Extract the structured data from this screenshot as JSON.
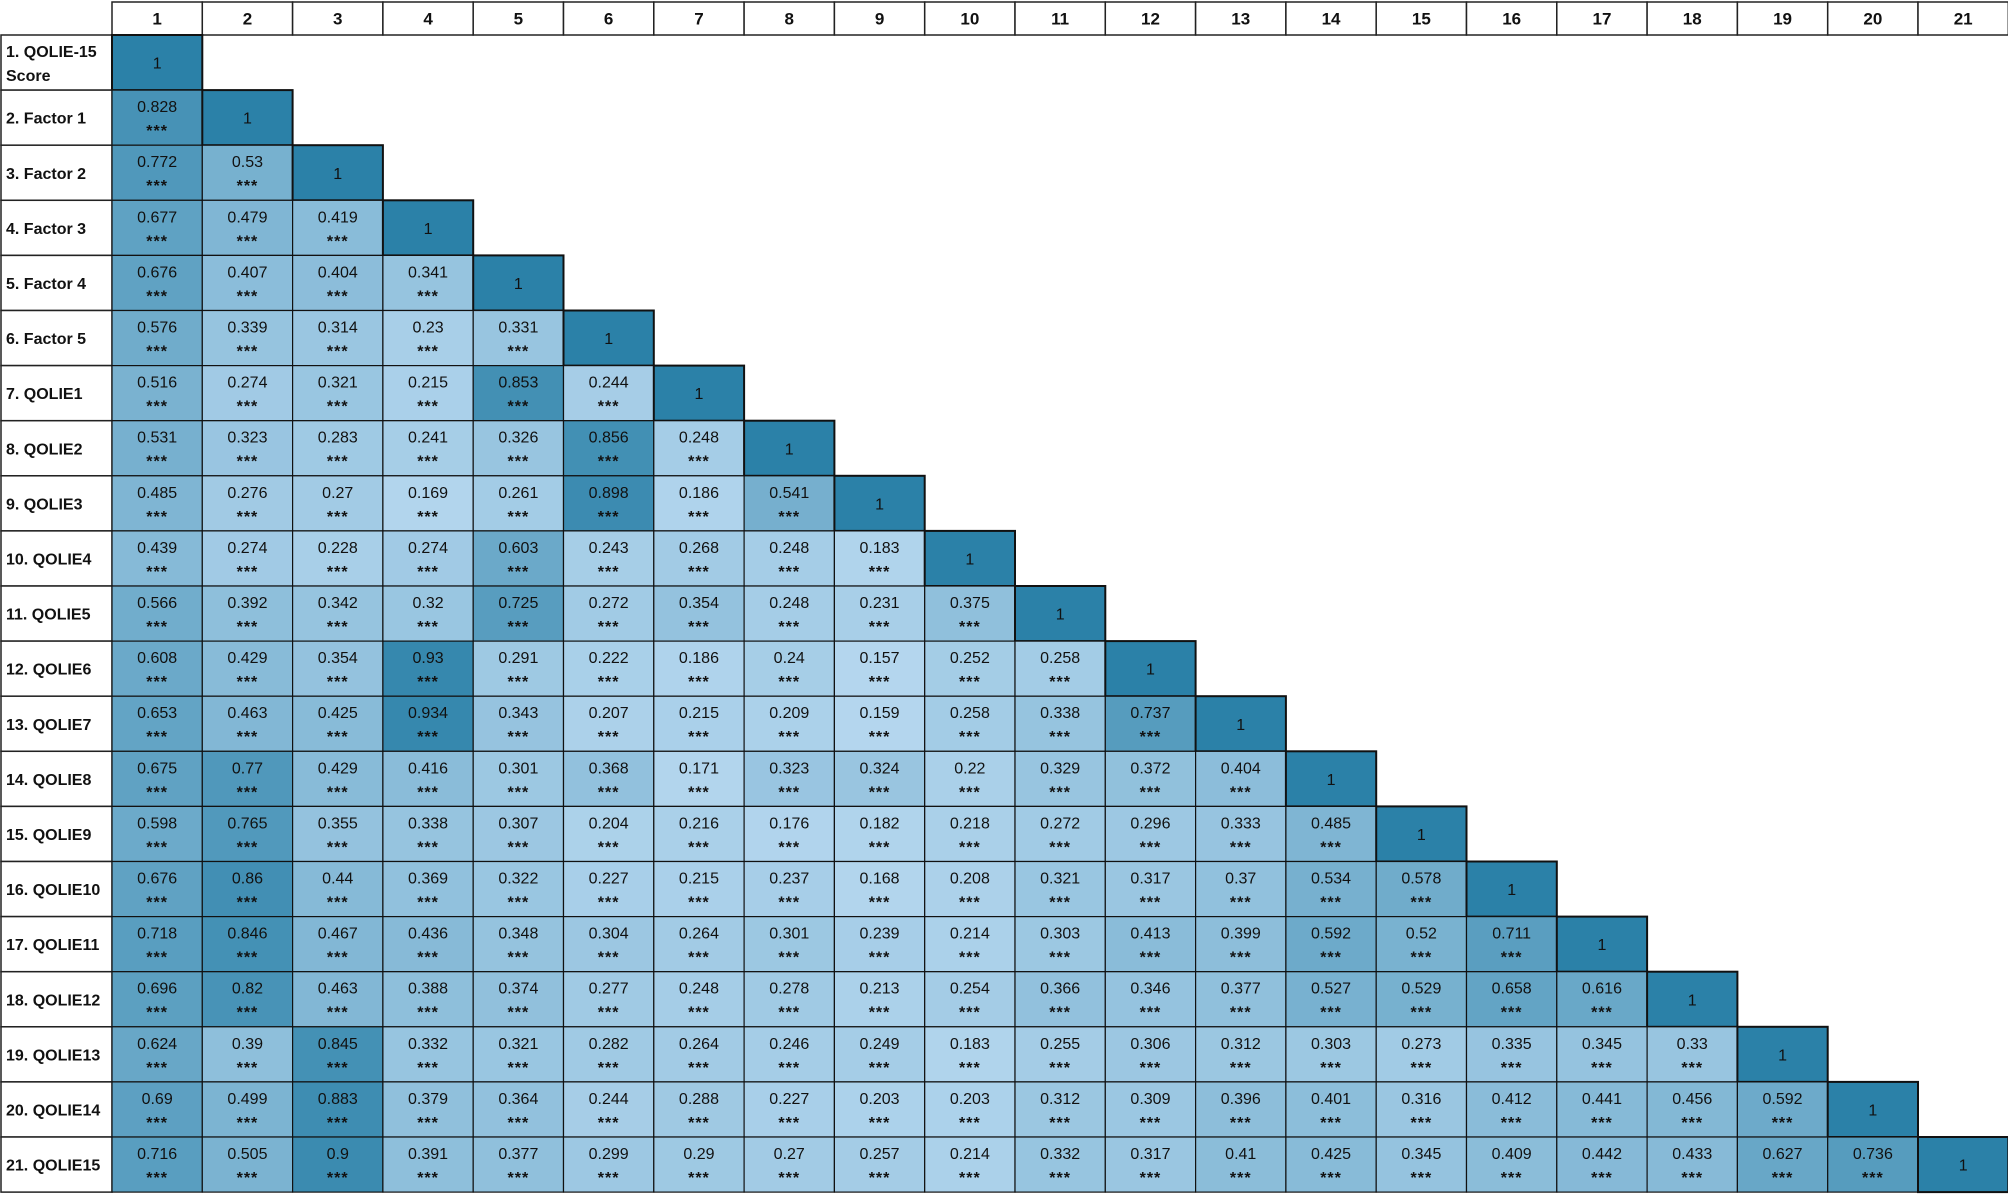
{
  "chart_data": {
    "type": "heatmap",
    "title": "",
    "column_headers": [
      "1",
      "2",
      "3",
      "4",
      "5",
      "6",
      "7",
      "8",
      "9",
      "10",
      "11",
      "12",
      "13",
      "14",
      "15",
      "16",
      "17",
      "18",
      "19",
      "20",
      "21"
    ],
    "row_labels": [
      "1. QOLIE-15 Score",
      "2. Factor 1",
      "3. Factor 2",
      "4. Factor 3",
      "5. Factor 4",
      "6. Factor 5",
      "7. QOLIE1",
      "8. QOLIE2",
      "9. QOLIE3",
      "10. QOLIE4",
      "11. QOLIE5",
      "12. QOLIE6",
      "13. QOLIE7",
      "14. QOLIE8",
      "15. QOLIE9",
      "16. QOLIE10",
      "17. QOLIE11",
      "18. QOLIE12",
      "19. QOLIE13",
      "20. QOLIE14",
      "21. QOLIE15"
    ],
    "significance_marker": "***",
    "color_scale": {
      "low": "#b5d7ef",
      "high": "#2b81a8"
    },
    "values": [
      [
        "1"
      ],
      [
        "0.828",
        "1"
      ],
      [
        "0.772",
        "0.53",
        "1"
      ],
      [
        "0.677",
        "0.479",
        "0.419",
        "1"
      ],
      [
        "0.676",
        "0.407",
        "0.404",
        "0.341",
        "1"
      ],
      [
        "0.576",
        "0.339",
        "0.314",
        "0.23",
        "0.331",
        "1"
      ],
      [
        "0.516",
        "0.274",
        "0.321",
        "0.215",
        "0.853",
        "0.244",
        "1"
      ],
      [
        "0.531",
        "0.323",
        "0.283",
        "0.241",
        "0.326",
        "0.856",
        "0.248",
        "1"
      ],
      [
        "0.485",
        "0.276",
        "0.27",
        "0.169",
        "0.261",
        "0.898",
        "0.186",
        "0.541",
        "1"
      ],
      [
        "0.439",
        "0.274",
        "0.228",
        "0.274",
        "0.603",
        "0.243",
        "0.268",
        "0.248",
        "0.183",
        "1"
      ],
      [
        "0.566",
        "0.392",
        "0.342",
        "0.32",
        "0.725",
        "0.272",
        "0.354",
        "0.248",
        "0.231",
        "0.375",
        "1"
      ],
      [
        "0.608",
        "0.429",
        "0.354",
        "0.93",
        "0.291",
        "0.222",
        "0.186",
        "0.24",
        "0.157",
        "0.252",
        "0.258",
        "1"
      ],
      [
        "0.653",
        "0.463",
        "0.425",
        "0.934",
        "0.343",
        "0.207",
        "0.215",
        "0.209",
        "0.159",
        "0.258",
        "0.338",
        "0.737",
        "1"
      ],
      [
        "0.675",
        "0.77",
        "0.429",
        "0.416",
        "0.301",
        "0.368",
        "0.171",
        "0.323",
        "0.324",
        "0.22",
        "0.329",
        "0.372",
        "0.404",
        "1"
      ],
      [
        "0.598",
        "0.765",
        "0.355",
        "0.338",
        "0.307",
        "0.204",
        "0.216",
        "0.176",
        "0.182",
        "0.218",
        "0.272",
        "0.296",
        "0.333",
        "0.485",
        "1"
      ],
      [
        "0.676",
        "0.86",
        "0.44",
        "0.369",
        "0.322",
        "0.227",
        "0.215",
        "0.237",
        "0.168",
        "0.208",
        "0.321",
        "0.317",
        "0.37",
        "0.534",
        "0.578",
        "1"
      ],
      [
        "0.718",
        "0.846",
        "0.467",
        "0.436",
        "0.348",
        "0.304",
        "0.264",
        "0.301",
        "0.239",
        "0.214",
        "0.303",
        "0.413",
        "0.399",
        "0.592",
        "0.52",
        "0.711",
        "1"
      ],
      [
        "0.696",
        "0.82",
        "0.463",
        "0.388",
        "0.374",
        "0.277",
        "0.248",
        "0.278",
        "0.213",
        "0.254",
        "0.366",
        "0.346",
        "0.377",
        "0.527",
        "0.529",
        "0.658",
        "0.616",
        "1"
      ],
      [
        "0.624",
        "0.39",
        "0.845",
        "0.332",
        "0.321",
        "0.282",
        "0.264",
        "0.246",
        "0.249",
        "0.183",
        "0.255",
        "0.306",
        "0.312",
        "0.303",
        "0.273",
        "0.335",
        "0.345",
        "0.33",
        "1"
      ],
      [
        "0.69",
        "0.499",
        "0.883",
        "0.379",
        "0.364",
        "0.244",
        "0.288",
        "0.227",
        "0.203",
        "0.203",
        "0.312",
        "0.309",
        "0.396",
        "0.401",
        "0.316",
        "0.412",
        "0.441",
        "0.456",
        "0.592",
        "1"
      ],
      [
        "0.716",
        "0.505",
        "0.9",
        "0.391",
        "0.377",
        "0.299",
        "0.29",
        "0.27",
        "0.257",
        "0.214",
        "0.332",
        "0.317",
        "0.41",
        "0.425",
        "0.345",
        "0.409",
        "0.442",
        "0.433",
        "0.627",
        "0.736",
        "1"
      ]
    ]
  }
}
